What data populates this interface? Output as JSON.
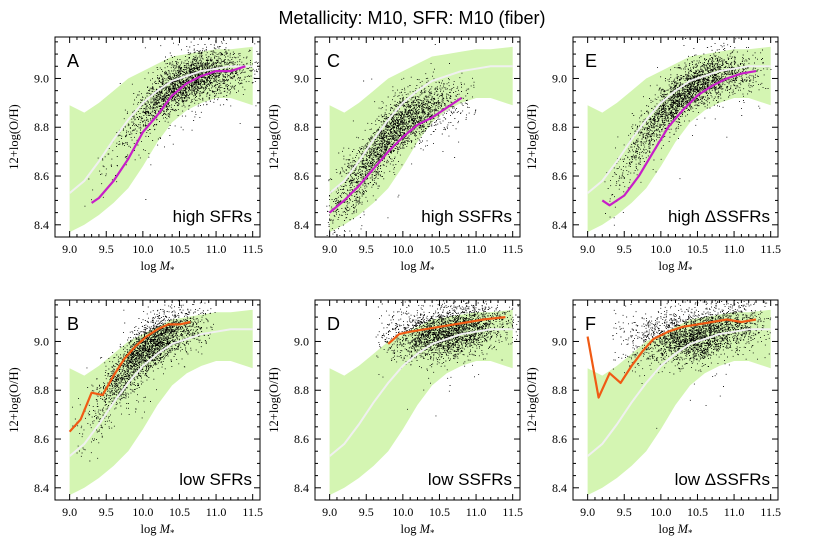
{
  "figure_title": "Metallicity: M10,   SFR: M10 (fiber)",
  "colors": {
    "band": "#d4f5b2",
    "median_line": "#f0f0f0",
    "high_line": "#c81ec8",
    "low_line": "#f05a14",
    "points": "#000000"
  },
  "chart_data": [
    {
      "type": "scatter",
      "letter": "A",
      "label": "high SFRs",
      "xlabel": "log M*",
      "ylabel": "12+log(O/H)",
      "xlim": [
        8.8,
        11.6
      ],
      "ylim": [
        8.35,
        9.17
      ],
      "xticks": [
        "9.0",
        "9.5",
        "10.0",
        "10.5",
        "11.0",
        "11.5"
      ],
      "yticks": [
        "8.4",
        "8.6",
        "8.8",
        "9.0"
      ],
      "cloud": {
        "center_x": 10.6,
        "spread_x": 0.42,
        "x_min": 9.2,
        "x_max": 11.6,
        "relation": "high"
      },
      "line_color": "#c81ec8",
      "line": {
        "x": [
          9.3,
          9.4,
          9.6,
          9.8,
          10.0,
          10.2,
          10.4,
          10.6,
          10.8,
          11.0,
          11.2,
          11.4
        ],
        "y": [
          8.49,
          8.51,
          8.58,
          8.67,
          8.78,
          8.85,
          8.93,
          8.98,
          9.01,
          9.03,
          9.03,
          9.05
        ]
      }
    },
    {
      "type": "scatter",
      "letter": "C",
      "label": "high SSFRs",
      "xlabel": "log M*",
      "ylabel": "12+log(O/H)",
      "xlim": [
        8.8,
        11.6
      ],
      "ylim": [
        8.35,
        9.17
      ],
      "xticks": [
        "9.0",
        "9.5",
        "10.0",
        "10.5",
        "11.0",
        "11.5"
      ],
      "yticks": [
        "8.4",
        "8.6",
        "8.8",
        "9.0"
      ],
      "cloud": {
        "center_x": 9.85,
        "spread_x": 0.45,
        "x_min": 8.95,
        "x_max": 11.0,
        "relation": "ssfr"
      },
      "line_color": "#c81ec8",
      "line": {
        "x": [
          9.0,
          9.2,
          9.4,
          9.6,
          9.8,
          10.0,
          10.2,
          10.4,
          10.6,
          10.8
        ],
        "y": [
          8.45,
          8.5,
          8.56,
          8.63,
          8.7,
          8.76,
          8.81,
          8.84,
          8.88,
          8.92
        ]
      }
    },
    {
      "type": "scatter",
      "letter": "E",
      "label": "high ΔSSFRs",
      "xlabel": "log M*",
      "ylabel": "12+log(O/H)",
      "xlim": [
        8.8,
        11.6
      ],
      "ylim": [
        8.35,
        9.17
      ],
      "xticks": [
        "9.0",
        "9.5",
        "10.0",
        "10.5",
        "11.0",
        "11.5"
      ],
      "yticks": [
        "8.4",
        "8.6",
        "8.8",
        "9.0"
      ],
      "cloud": {
        "center_x": 10.35,
        "spread_x": 0.45,
        "x_min": 9.2,
        "x_max": 11.5,
        "relation": "high"
      },
      "line_color": "#c81ec8",
      "line": {
        "x": [
          9.2,
          9.3,
          9.5,
          9.7,
          9.9,
          10.1,
          10.3,
          10.5,
          10.7,
          10.9,
          11.1,
          11.3
        ],
        "y": [
          8.5,
          8.48,
          8.52,
          8.6,
          8.7,
          8.8,
          8.87,
          8.93,
          8.97,
          9.0,
          9.02,
          9.03
        ]
      }
    },
    {
      "type": "scatter",
      "letter": "B",
      "label": "low SFRs",
      "xlabel": "log M*",
      "ylabel": "12+log(O/H)",
      "xlim": [
        8.8,
        11.6
      ],
      "ylim": [
        8.35,
        9.17
      ],
      "xticks": [
        "9.0",
        "9.5",
        "10.0",
        "10.5",
        "11.0",
        "11.5"
      ],
      "yticks": [
        "8.4",
        "8.6",
        "8.8",
        "9.0"
      ],
      "cloud": {
        "center_x": 10.05,
        "spread_x": 0.35,
        "x_min": 9.0,
        "x_max": 11.0,
        "relation": "low"
      },
      "line_color": "#f05a14",
      "line": {
        "x": [
          9.0,
          9.15,
          9.3,
          9.45,
          9.6,
          9.75,
          9.9,
          10.05,
          10.2,
          10.35,
          10.5,
          10.65
        ],
        "y": [
          8.63,
          8.68,
          8.79,
          8.78,
          8.86,
          8.93,
          8.98,
          9.02,
          9.05,
          9.07,
          9.07,
          9.08
        ]
      }
    },
    {
      "type": "scatter",
      "letter": "D",
      "label": "low SSFRs",
      "xlabel": "log M*",
      "ylabel": "12+log(O/H)",
      "xlim": [
        8.8,
        11.6
      ],
      "ylim": [
        8.35,
        9.17
      ],
      "xticks": [
        "9.0",
        "9.5",
        "10.0",
        "10.5",
        "11.0",
        "11.5"
      ],
      "yticks": [
        "8.4",
        "8.6",
        "8.8",
        "9.0"
      ],
      "cloud": {
        "center_x": 10.6,
        "spread_x": 0.4,
        "x_min": 9.6,
        "x_max": 11.6,
        "relation": "flat"
      },
      "line_color": "#f05a14",
      "line": {
        "x": [
          9.8,
          9.95,
          10.1,
          10.3,
          10.5,
          10.7,
          10.9,
          11.1,
          11.4
        ],
        "y": [
          8.99,
          9.03,
          9.04,
          9.05,
          9.06,
          9.07,
          9.08,
          9.09,
          9.1
        ]
      }
    },
    {
      "type": "scatter",
      "letter": "F",
      "label": "low ΔSSFRs",
      "xlabel": "log M*",
      "ylabel": "12+log(O/H)",
      "xlim": [
        8.8,
        11.6
      ],
      "ylim": [
        8.35,
        9.17
      ],
      "xticks": [
        "9.0",
        "9.5",
        "10.0",
        "10.5",
        "11.0",
        "11.5"
      ],
      "yticks": [
        "8.4",
        "8.6",
        "8.8",
        "9.0"
      ],
      "cloud": {
        "center_x": 10.5,
        "spread_x": 0.45,
        "x_min": 9.3,
        "x_max": 11.5,
        "relation": "lowflat"
      },
      "line_color": "#f05a14",
      "line": {
        "x": [
          9.0,
          9.15,
          9.3,
          9.45,
          9.6,
          9.75,
          9.9,
          10.1,
          10.3,
          10.5,
          10.7,
          10.9,
          11.1,
          11.3
        ],
        "y": [
          9.02,
          8.77,
          8.87,
          8.83,
          8.9,
          8.96,
          9.01,
          9.04,
          9.06,
          9.07,
          9.08,
          9.09,
          9.08,
          9.09
        ]
      }
    }
  ],
  "reference": {
    "median_x": [
      9.0,
      9.2,
      9.4,
      9.6,
      9.8,
      10.0,
      10.2,
      10.4,
      10.6,
      10.8,
      11.0,
      11.2,
      11.5
    ],
    "median_y": [
      8.53,
      8.58,
      8.66,
      8.75,
      8.83,
      8.9,
      8.95,
      8.99,
      9.01,
      9.03,
      9.04,
      9.05,
      9.05
    ],
    "band_x": [
      9.0,
      9.2,
      9.4,
      9.6,
      9.8,
      10.0,
      10.2,
      10.4,
      10.6,
      10.8,
      11.0,
      11.2,
      11.5
    ],
    "band_upper": [
      8.89,
      8.86,
      8.9,
      8.95,
      9.0,
      9.03,
      9.06,
      9.09,
      9.1,
      9.11,
      9.12,
      9.12,
      9.13
    ],
    "band_lower": [
      8.37,
      8.4,
      8.44,
      8.49,
      8.55,
      8.64,
      8.74,
      8.82,
      8.87,
      8.9,
      8.92,
      8.92,
      8.89
    ]
  }
}
